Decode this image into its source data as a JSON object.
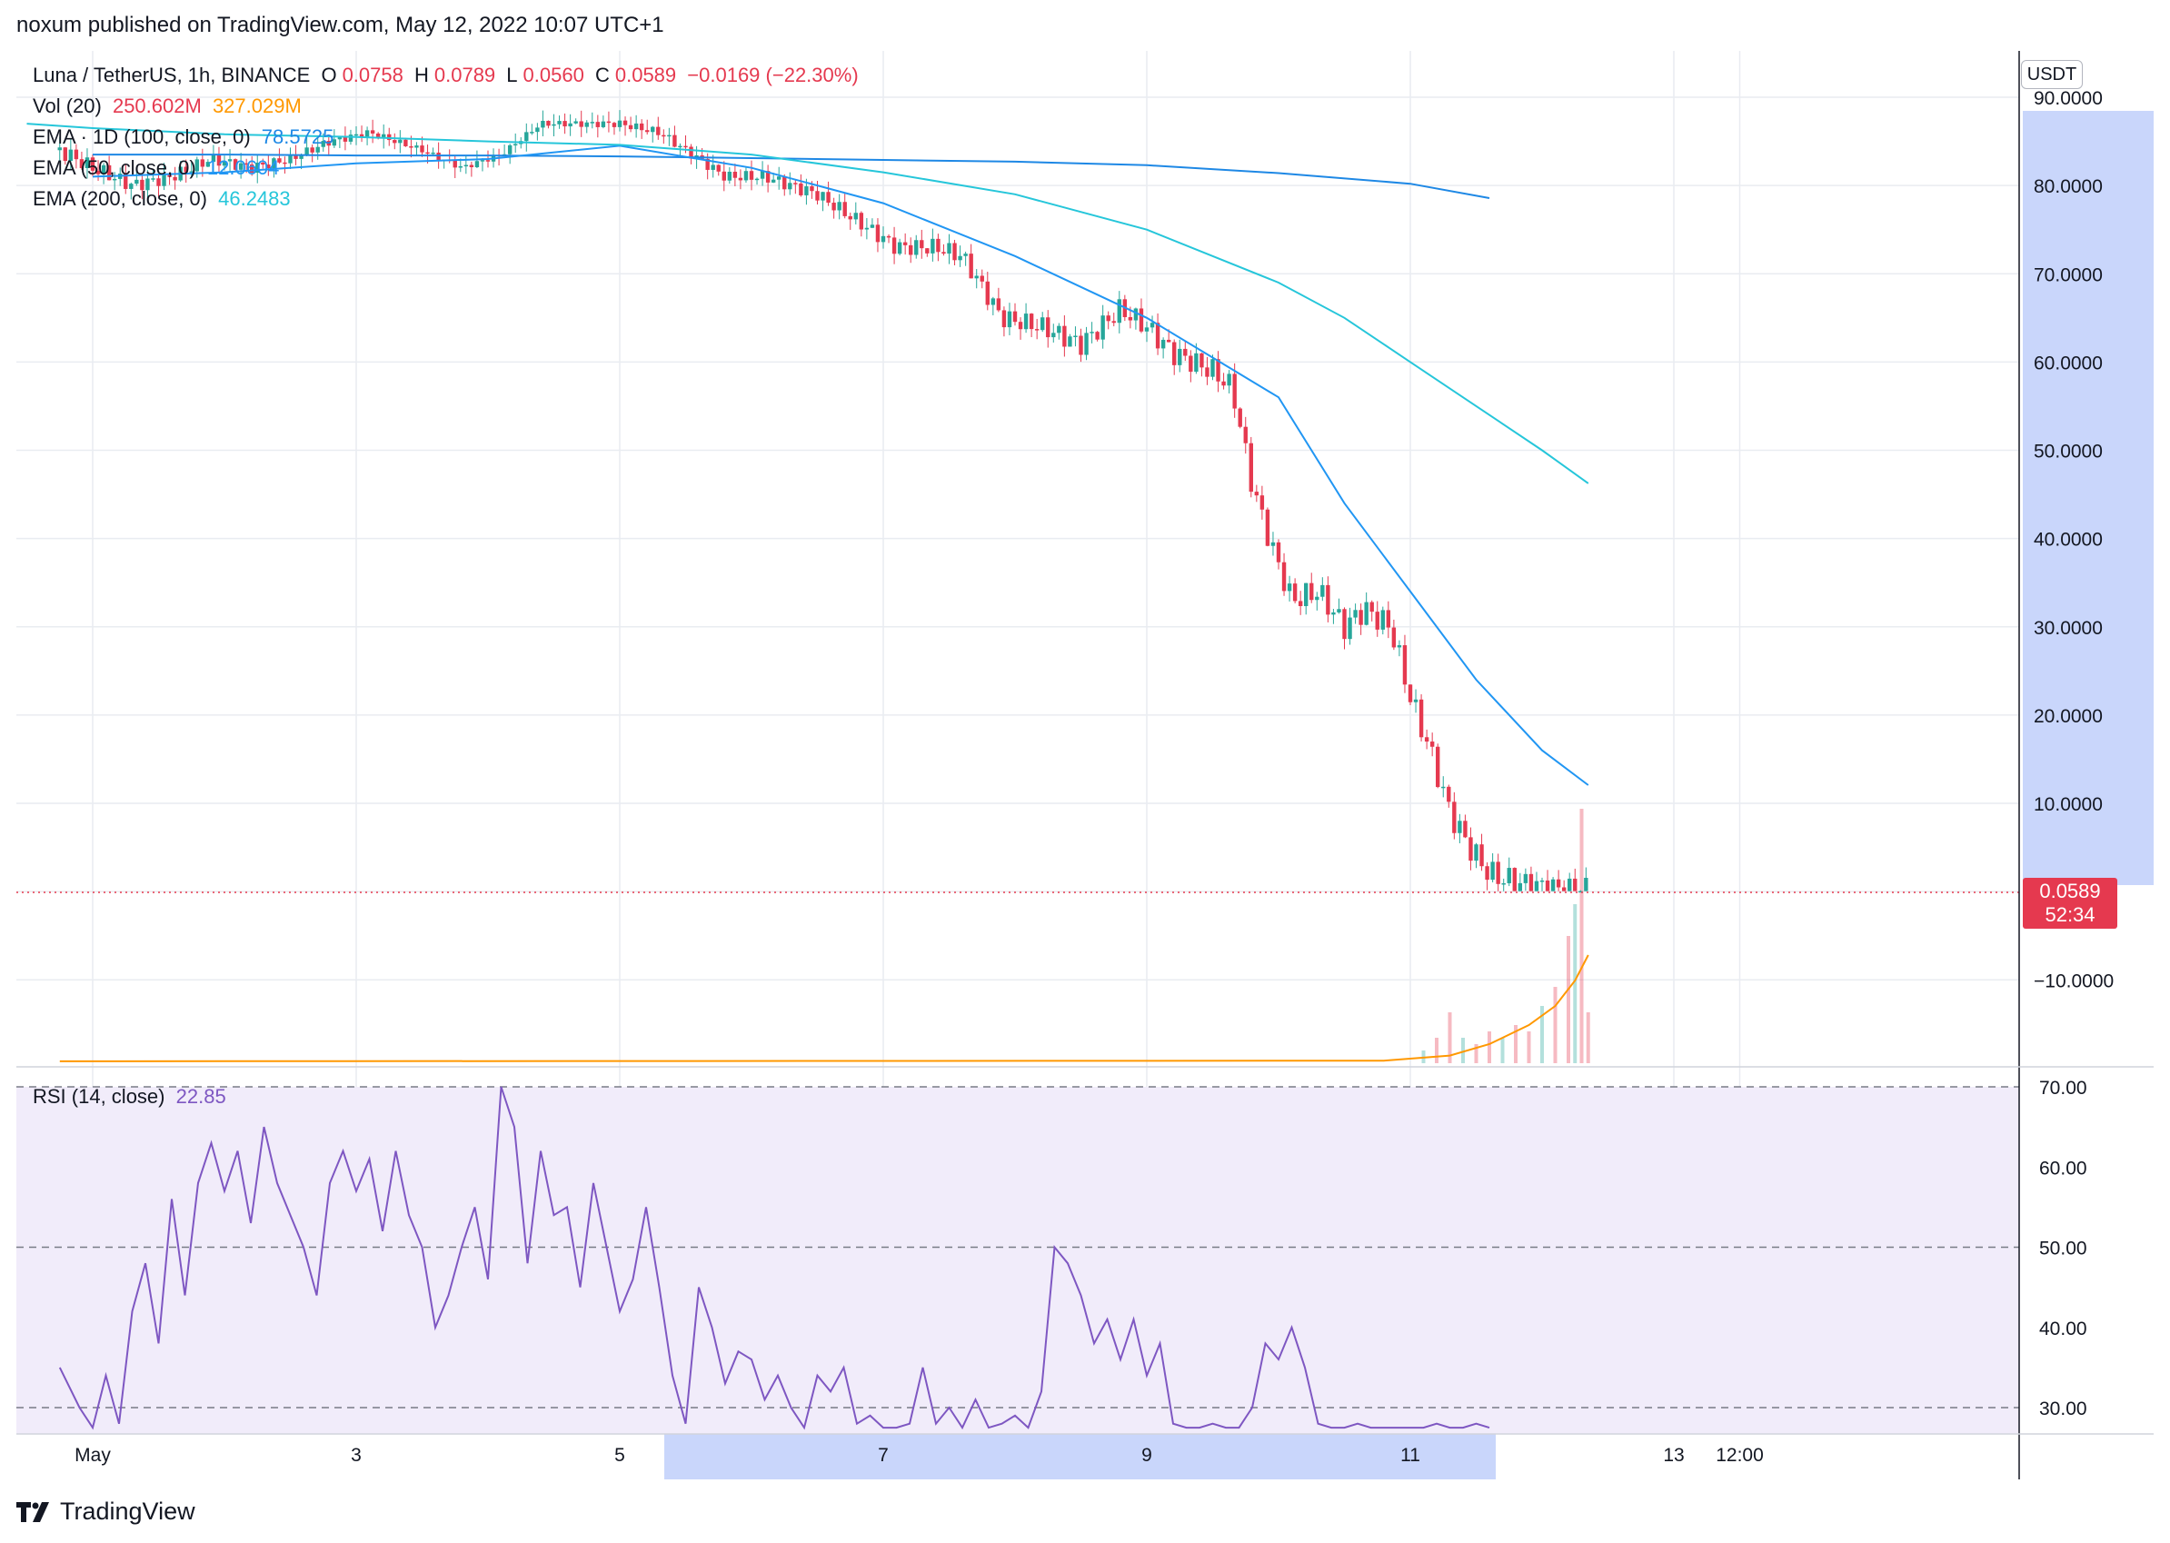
{
  "publisher_line": "noxum published on TradingView.com, May 12, 2022 10:07 UTC+1",
  "brand": "TradingView",
  "currency_button": "USDT",
  "legend": {
    "symbol": "Luna / TetherUS, 1h, BINANCE",
    "o_label": "O",
    "o_value": "0.0758",
    "h_label": "H",
    "h_value": "0.0789",
    "l_label": "L",
    "l_value": "0.0560",
    "c_label": "C",
    "c_value": "0.0589",
    "change": "−0.0169 (−22.30%)",
    "vol_label": "Vol (20)",
    "vol_value": "250.602M",
    "vol_ma": "327.029M",
    "ema1d_label": "EMA · 1D (100, close, 0)",
    "ema1d_value": "78.5725",
    "ema50_label": "EMA (50, close, 0)",
    "ema50_value": "12.0604",
    "ema200_label": "EMA (200, close, 0)",
    "ema200_value": "46.2483",
    "rsi_label": "RSI (14, close)",
    "rsi_value": "22.85"
  },
  "last_price_tag": {
    "price": "0.0589",
    "countdown": "52:34"
  },
  "colors": {
    "up": "#26a69a",
    "down": "#e5394f",
    "ema1d": "#1e88e5",
    "ema50": "#2196f3",
    "ema200": "#26c6da",
    "rsi": "#7e57c2",
    "vol_ma": "#ff9800",
    "axis_highlight": "#c9d6fb",
    "rsi_band": "#f1ecfa"
  },
  "chart_data": [
    {
      "type": "candlestick",
      "title": "Luna / TetherUS, 1h, BINANCE",
      "x_ticks": [
        "May",
        "3",
        "5",
        "7",
        "9",
        "11",
        "13",
        "12:00"
      ],
      "x_range_days": [
        1,
        13.5
      ],
      "y_ticks": [
        "90.0000",
        "80.0000",
        "70.0000",
        "60.0000",
        "50.0000",
        "40.0000",
        "30.0000",
        "20.0000",
        "10.0000",
        "−10.0000"
      ],
      "ylim": [
        -10,
        90
      ],
      "last_price": 0.0589,
      "price_path": [
        [
          0.75,
          84
        ],
        [
          1.0,
          82
        ],
        [
          1.3,
          80
        ],
        [
          1.6,
          81
        ],
        [
          1.9,
          83
        ],
        [
          2.2,
          82
        ],
        [
          2.5,
          83
        ],
        [
          2.8,
          85
        ],
        [
          3.1,
          86
        ],
        [
          3.5,
          84
        ],
        [
          3.8,
          82
        ],
        [
          4.1,
          83.5
        ],
        [
          4.4,
          87
        ],
        [
          4.7,
          87
        ],
        [
          5.0,
          87
        ],
        [
          5.3,
          86
        ],
        [
          5.5,
          84
        ],
        [
          5.8,
          81
        ],
        [
          6.1,
          81
        ],
        [
          6.5,
          79
        ],
        [
          6.8,
          76
        ],
        [
          7.1,
          73
        ],
        [
          7.4,
          73
        ],
        [
          7.6,
          72
        ],
        [
          7.9,
          65
        ],
        [
          8.2,
          64
        ],
        [
          8.5,
          62
        ],
        [
          8.8,
          66
        ],
        [
          9.0,
          64
        ],
        [
          9.2,
          61
        ],
        [
          9.5,
          59
        ],
        [
          9.65,
          57
        ],
        [
          9.8,
          46
        ],
        [
          9.95,
          39
        ],
        [
          10.1,
          33
        ],
        [
          10.3,
          34
        ],
        [
          10.5,
          30
        ],
        [
          10.65,
          32
        ],
        [
          10.85,
          30
        ],
        [
          11.0,
          22
        ],
        [
          11.15,
          16
        ],
        [
          11.3,
          9
        ],
        [
          11.45,
          5
        ],
        [
          11.6,
          2
        ],
        [
          11.8,
          1
        ],
        [
          12.0,
          0.5
        ],
        [
          12.2,
          0.1
        ],
        [
          12.35,
          0.06
        ]
      ],
      "series": [
        {
          "name": "EMA · 1D (100, close, 0)",
          "x": [
            1,
            2,
            3,
            4,
            5,
            6,
            7,
            8,
            9,
            10,
            11,
            11.6
          ],
          "values": [
            83.5,
            83.5,
            83.4,
            83.4,
            83.3,
            83.1,
            82.9,
            82.7,
            82.3,
            81.4,
            80.2,
            78.57
          ]
        },
        {
          "name": "EMA (50, close, 0)",
          "x": [
            1,
            2,
            3,
            4,
            5,
            6,
            7,
            8,
            9,
            10,
            10.5,
            11,
            11.5,
            12,
            12.35
          ],
          "values": [
            81,
            81.5,
            82.5,
            83,
            84.5,
            82,
            78,
            72,
            65,
            56,
            44,
            34,
            24,
            16,
            12.06
          ]
        },
        {
          "name": "EMA (200, close, 0)",
          "x": [
            0.5,
            1,
            2,
            3,
            4,
            5,
            6,
            7,
            8,
            9,
            10,
            10.5,
            11,
            11.5,
            12,
            12.35
          ],
          "values": [
            87,
            86.5,
            85.8,
            85.5,
            85,
            84.6,
            83.5,
            81.5,
            79,
            75,
            69,
            65,
            60,
            55,
            50,
            46.25
          ]
        }
      ],
      "volume_relative": {
        "x": [
          11.1,
          11.2,
          11.3,
          11.4,
          11.5,
          11.6,
          11.7,
          11.8,
          11.9,
          12.0,
          12.1,
          12.2,
          12.25,
          12.3,
          12.35
        ],
        "values": [
          2,
          4,
          8,
          4,
          3,
          5,
          4,
          6,
          5,
          9,
          12,
          20,
          25,
          40,
          8
        ]
      }
    },
    {
      "type": "line",
      "title": "RSI (14, close)",
      "y_ticks": [
        "70.00",
        "60.00",
        "50.00",
        "40.00",
        "30.00"
      ],
      "ylim": [
        27.5,
        72.5
      ],
      "levels": [
        70,
        50,
        30
      ],
      "x": [
        0.75,
        0.9,
        1.0,
        1.1,
        1.2,
        1.3,
        1.4,
        1.5,
        1.6,
        1.7,
        1.8,
        1.9,
        2.0,
        2.1,
        2.2,
        2.3,
        2.4,
        2.5,
        2.6,
        2.7,
        2.8,
        2.9,
        3.0,
        3.1,
        3.2,
        3.3,
        3.4,
        3.5,
        3.6,
        3.7,
        3.8,
        3.9,
        4.0,
        4.1,
        4.2,
        4.3,
        4.4,
        4.5,
        4.6,
        4.7,
        4.8,
        4.9,
        5.0,
        5.1,
        5.2,
        5.3,
        5.4,
        5.5,
        5.6,
        5.7,
        5.8,
        5.9,
        6.0,
        6.1,
        6.2,
        6.3,
        6.4,
        6.5,
        6.6,
        6.7,
        6.8,
        6.9,
        7.0,
        7.1,
        7.2,
        7.3,
        7.4,
        7.5,
        7.6,
        7.7,
        7.8,
        7.9,
        8.0,
        8.1,
        8.2,
        8.3,
        8.4,
        8.5,
        8.6,
        8.7,
        8.8,
        8.9,
        9.0,
        9.1,
        9.2,
        9.3,
        9.4,
        9.5,
        9.6,
        9.7,
        9.8,
        9.9,
        10.0,
        10.1,
        10.2,
        10.3,
        10.4,
        10.5,
        10.6,
        10.7,
        10.8,
        10.9,
        11.0,
        11.1,
        11.2,
        11.3,
        11.4,
        11.5,
        11.6
      ],
      "values": [
        35,
        30,
        26,
        34,
        28,
        42,
        48,
        38,
        56,
        44,
        58,
        63,
        57,
        62,
        53,
        65,
        58,
        54,
        50,
        44,
        58,
        62,
        57,
        61,
        52,
        62,
        54,
        50,
        40,
        44,
        50,
        55,
        46,
        70,
        65,
        48,
        62,
        54,
        55,
        45,
        58,
        50,
        42,
        46,
        55,
        45,
        34,
        28,
        45,
        40,
        33,
        37,
        36,
        31,
        34,
        30,
        27,
        34,
        32,
        35,
        28,
        29,
        27,
        26,
        28,
        35,
        28,
        30,
        27,
        31,
        26,
        28,
        29,
        25,
        32,
        50,
        48,
        44,
        38,
        41,
        36,
        41,
        34,
        38,
        28,
        26,
        24,
        28,
        27,
        22,
        30,
        38,
        36,
        40,
        35,
        28,
        26,
        24,
        28,
        24,
        25,
        22,
        24,
        26,
        28,
        25,
        27,
        28,
        26
      ]
    }
  ]
}
